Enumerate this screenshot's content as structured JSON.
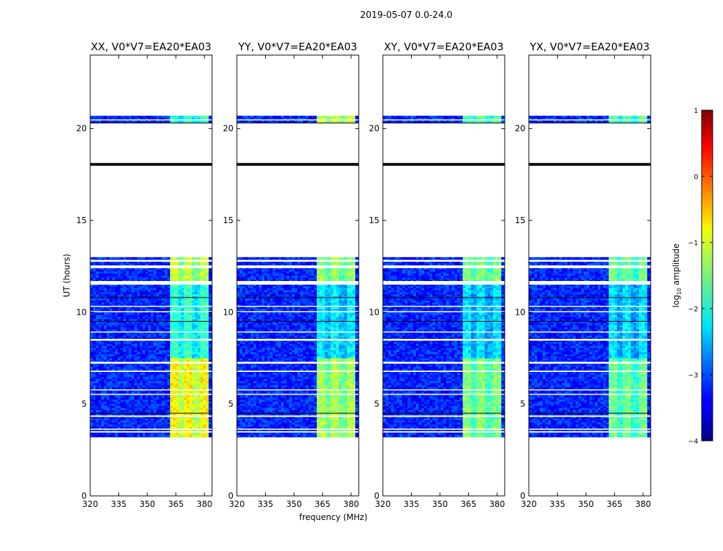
{
  "chart_data": {
    "type": "heatmap",
    "suptitle": "2019-05-07 0.0-24.0",
    "xlabel": "frequency (MHz)",
    "ylabel": "UT (hours)",
    "xlim": [
      320,
      384
    ],
    "ylim": [
      0,
      24
    ],
    "xticks": [
      320,
      335,
      350,
      365,
      380
    ],
    "yticks": [
      0,
      5,
      10,
      15,
      20
    ],
    "colormap": "jet",
    "colorbar": {
      "label": "log10 amplitude",
      "label_base": "log",
      "label_sub": "10",
      "label_rest": " amplitude",
      "ticks": [
        1,
        0,
        -1,
        -2,
        -3,
        -4
      ],
      "range": [
        -4,
        1
      ]
    },
    "data_coverage_hours": [
      [
        3.2,
        13.0
      ],
      [
        20.3,
        20.7
      ]
    ],
    "flagged_gaps_hours": [
      [
        3.45,
        3.52
      ],
      [
        3.6,
        3.66
      ],
      [
        4.3,
        4.38
      ],
      [
        5.5,
        5.56
      ],
      [
        5.75,
        5.8
      ],
      [
        6.75,
        6.82
      ],
      [
        7.2,
        7.3
      ],
      [
        8.45,
        8.55
      ],
      [
        8.9,
        8.95
      ],
      [
        10.0,
        10.06
      ],
      [
        10.3,
        10.35
      ],
      [
        11.5,
        11.7
      ],
      [
        12.4,
        12.55
      ],
      [
        12.75,
        12.85
      ],
      [
        20.45,
        20.5
      ]
    ],
    "panels": [
      {
        "title": "XX, V0*V7=EA20*EA03",
        "background_log_amp": -3.2,
        "bright_band_mhz": [
          361,
          381
        ],
        "bright_log_amp": {
          "early": -1.0,
          "mid": -2.0,
          "late": -1.3,
          "top": -2.0
        }
      },
      {
        "title": "YY, V0*V7=EA20*EA03",
        "background_log_amp": -3.2,
        "bright_band_mhz": [
          361,
          381
        ],
        "bright_log_amp": {
          "early": -1.4,
          "mid": -2.3,
          "late": -1.5,
          "top": -1.3
        }
      },
      {
        "title": "XY, V0*V7=EA20*EA03",
        "background_log_amp": -3.2,
        "bright_band_mhz": [
          361,
          381
        ],
        "bright_log_amp": {
          "early": -1.6,
          "mid": -2.4,
          "late": -1.6,
          "top": -1.8
        }
      },
      {
        "title": "YX, V0*V7=EA20*EA03",
        "background_log_amp": -3.2,
        "bright_band_mhz": [
          361,
          381
        ],
        "bright_log_amp": {
          "early": -1.7,
          "mid": -2.4,
          "late": -1.7,
          "top": -1.8
        }
      }
    ]
  }
}
